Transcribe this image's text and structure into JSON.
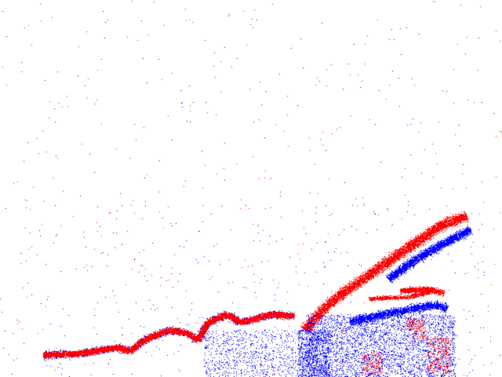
{
  "image": {
    "description_type": "event-camera polarity frame",
    "background_color": "#ffffff",
    "polarity_colors": {
      "positive": "#ff0000",
      "negative": "#0000ff"
    }
  }
}
